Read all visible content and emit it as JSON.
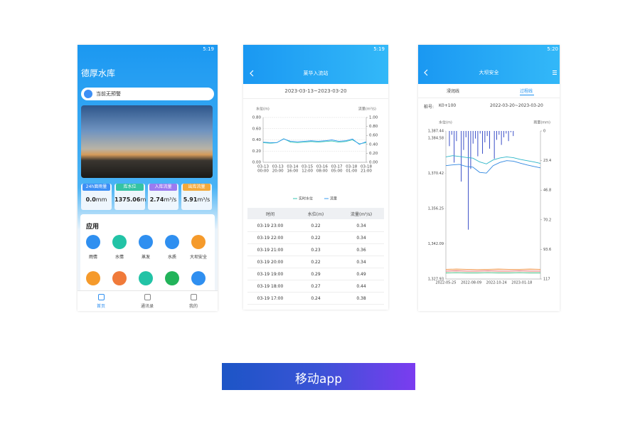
{
  "home": {
    "status_time": "5:19",
    "title": "德厚水库",
    "notice": "当前无预警",
    "stats": [
      {
        "label": "24h面雨量",
        "value": "0.0",
        "unit": "mm",
        "color": "#3d8ff5"
      },
      {
        "label": "库水位",
        "value": "1375.06",
        "unit": "m",
        "color": "#35c3a3"
      },
      {
        "label": "入库流量",
        "value": "2.74",
        "unit": "m³/s",
        "color": "#9b7bf0"
      },
      {
        "label": "出库流量",
        "value": "5.91",
        "unit": "m³/s",
        "color": "#f3a93b"
      }
    ],
    "section": "应用",
    "apps": [
      {
        "label": "雨情",
        "color": "#2f8ff0"
      },
      {
        "label": "水情",
        "color": "#22c3a6"
      },
      {
        "label": "蒸发",
        "color": "#2f8ff0"
      },
      {
        "label": "水质",
        "color": "#2f8ff0"
      },
      {
        "label": "大坝安全",
        "color": "#f59a2b"
      }
    ],
    "nav": [
      "首页",
      "通讯录",
      "我的"
    ]
  },
  "station": {
    "status_time": "5:19",
    "title": "莱华入流站",
    "date_range": "2023-03-13~2023-03-20",
    "chart": {
      "type": "line",
      "y_label": "水位(m)",
      "y2_label": "流量(m³/s)",
      "grid": true,
      "ylim": [
        0,
        0.8
      ],
      "yticks": [
        {
          "value": 0,
          "label": "0.00"
        },
        {
          "value": 0.2,
          "label": "0.20"
        },
        {
          "value": 0.4,
          "label": "0.40"
        },
        {
          "value": 0.6,
          "label": "0.60"
        },
        {
          "value": 0.8,
          "label": "0.80"
        }
      ],
      "y2lim": [
        0,
        1
      ],
      "y2ticks": [
        {
          "value": 0,
          "label": "0.00"
        },
        {
          "value": 0.2,
          "label": "0.20"
        },
        {
          "value": 0.4,
          "label": "0.40"
        },
        {
          "value": 0.6,
          "label": "0.60"
        },
        {
          "value": 0.8,
          "label": "0.80"
        },
        {
          "value": 1,
          "label": "1.00"
        }
      ],
      "xticks": [
        [
          "03-13",
          "00:00"
        ],
        [
          "03-13",
          "20:00"
        ],
        [
          "03-14",
          "16:00"
        ],
        [
          "03-15",
          "12:00"
        ],
        [
          "03-16",
          "08:00"
        ],
        [
          "03-17",
          "05:00"
        ],
        [
          "03-18",
          "01:00"
        ],
        [
          "03-18",
          "21:00"
        ]
      ],
      "series": [
        {
          "name": "实时水位",
          "color": "#34c6b0",
          "values": [
            0.35,
            0.34,
            0.35,
            0.42,
            0.36,
            0.35,
            0.36,
            0.37,
            0.36,
            0.37,
            0.38,
            0.36,
            0.37,
            0.4,
            0.33,
            0.35
          ]
        },
        {
          "name": "流量",
          "color": "#3a9cf0",
          "axis": "y2",
          "values": [
            0.45,
            0.44,
            0.44,
            0.52,
            0.47,
            0.46,
            0.47,
            0.48,
            0.47,
            0.48,
            0.5,
            0.47,
            0.48,
            0.52,
            0.4,
            0.46
          ]
        }
      ]
    },
    "table": {
      "header": [
        "时间",
        "水位(m)",
        "流量(m³/s)"
      ],
      "rows": [
        [
          "03-19 23:00",
          "0.22",
          "0.34"
        ],
        [
          "03-19 22:00",
          "0.22",
          "0.34"
        ],
        [
          "03-19 21:00",
          "0.23",
          "0.36"
        ],
        [
          "03-19 20:00",
          "0.22",
          "0.34"
        ],
        [
          "03-19 19:00",
          "0.29",
          "0.49"
        ],
        [
          "03-19 18:00",
          "0.27",
          "0.44"
        ],
        [
          "03-19 17:00",
          "0.24",
          "0.38"
        ]
      ]
    }
  },
  "dam": {
    "status_time": "5:20",
    "title": "大坝安全",
    "tabs": [
      "浸润线",
      "过程线"
    ],
    "station_label": "桩号:",
    "station": "K0+100",
    "date_range": "2022-03-20~2023-03-20",
    "chart": {
      "type": "line",
      "y_label": "水位(m)",
      "y2_label": "雨量(mm)",
      "grid": false,
      "ylim": [
        1327.93,
        1387.44
      ],
      "yticks": [
        {
          "value": 1387.44,
          "label": "1,387.44"
        },
        {
          "value": 1384.58,
          "label": "1,384.58"
        },
        {
          "value": 1370.42,
          "label": "1,370.42"
        },
        {
          "value": 1356.25,
          "label": "1,356.25"
        },
        {
          "value": 1342.09,
          "label": "1,342.09"
        },
        {
          "value": 1327.93,
          "label": "1,327.93"
        }
      ],
      "y2lim": [
        0,
        117
      ],
      "y2_inverted": true,
      "y2ticks": [
        0,
        23.4,
        46.8,
        70.2,
        93.6,
        117
      ],
      "xticks": [
        "2022-05-25",
        "2022-08-09",
        "2022-10-24",
        "2023-01-18"
      ],
      "series": [
        {
          "type": "bar",
          "axis": "y2",
          "color": "#3a4fc8",
          "values": [
            0,
            12,
            3,
            25,
            8,
            0,
            40,
            15,
            5,
            78,
            30,
            10,
            6,
            20,
            2,
            18,
            9,
            4,
            14,
            0,
            22,
            7,
            3,
            11,
            5,
            2,
            8,
            1,
            4,
            0
          ]
        },
        {
          "color": "#2bb5c8",
          "values": [
            1377,
            1377.5,
            1377.2,
            1376.8,
            1376.5,
            1375,
            1374.2,
            1375.8,
            1376.6,
            1377,
            1376.7,
            1376,
            1375.5,
            1375,
            1374.4
          ]
        },
        {
          "color": "#2f86e0",
          "values": [
            1373.5,
            1373.8,
            1374,
            1373.2,
            1372.9,
            1370.8,
            1370.5,
            1373.5,
            1374.8,
            1375.5,
            1375.3,
            1374.5,
            1373.8,
            1373.2,
            1372.6
          ]
        },
        {
          "color": "#f08a3a",
          "values": [
            1331.8,
            1331.9,
            1331.8,
            1331.7,
            1331.8,
            1331.9,
            1331.8,
            1331.8,
            1331.9,
            1331.8
          ]
        },
        {
          "color": "#e0504a",
          "values": [
            1331.1,
            1331.2,
            1331.1,
            1331.1,
            1331.2,
            1331.1,
            1331.1,
            1331.2,
            1331.1,
            1331.1
          ]
        },
        {
          "color": "#3cb878",
          "values": [
            1330.4,
            1330.5,
            1330.4,
            1330.4,
            1330.5,
            1330.4,
            1330.4,
            1330.5,
            1330.4,
            1330.4
          ]
        }
      ]
    }
  },
  "footer": "移动app"
}
